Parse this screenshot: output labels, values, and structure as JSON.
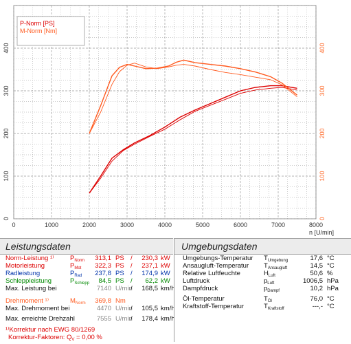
{
  "chart_data": {
    "type": "line",
    "legend_position": "top-left",
    "x_axis": {
      "label": "n [U/min]",
      "range": [
        0,
        8000
      ],
      "ticks": [
        "0",
        "1000",
        "2000",
        "3000",
        "4000",
        "5000",
        "6000",
        "7000",
        "8000"
      ]
    },
    "y_left": {
      "label": "P [PS]",
      "range": [
        0,
        500
      ],
      "ticks": [
        "0",
        "100",
        "200",
        "300",
        "400"
      ]
    },
    "y_right": {
      "label": "M [Nm]",
      "range": [
        0,
        500
      ],
      "ticks": [
        "0",
        "100",
        "200",
        "300",
        "400"
      ]
    },
    "grid": true,
    "series": [
      {
        "name": "P-Norm [PS]",
        "axis": "left",
        "color": "#dd0000",
        "x": [
          2000,
          2300,
          2600,
          2900,
          3200,
          3600,
          4000,
          4400,
          4800,
          5200,
          5600,
          6000,
          6400,
          6800,
          7100,
          7500
        ],
        "y": [
          60,
          100,
          142,
          162,
          178,
          195,
          215,
          238,
          255,
          270,
          285,
          300,
          308,
          312,
          312,
          306
        ]
      },
      {
        "name": "P-Norm [PS] (2)",
        "axis": "left",
        "color": "#dd0000",
        "x": [
          2000,
          2300,
          2600,
          2900,
          3200,
          3600,
          4000,
          4400,
          4800,
          5200,
          5600,
          6000,
          6400,
          6800,
          7100,
          7500
        ],
        "y": [
          60,
          95,
          135,
          160,
          175,
          193,
          210,
          232,
          252,
          266,
          280,
          294,
          302,
          306,
          308,
          302
        ]
      },
      {
        "name": "M-Norm [Nm]",
        "axis": "right",
        "color": "#ff5a1f",
        "x": [
          2000,
          2300,
          2600,
          2800,
          3000,
          3200,
          3500,
          3800,
          4100,
          4300,
          4500,
          4800,
          5200,
          5600,
          6000,
          6400,
          6800,
          7100,
          7500
        ],
        "y": [
          200,
          265,
          335,
          355,
          362,
          358,
          352,
          353,
          358,
          367,
          372,
          366,
          362,
          358,
          352,
          344,
          333,
          318,
          290
        ]
      },
      {
        "name": "M-Norm [Nm] (2)",
        "axis": "right",
        "color": "#ff5a1f",
        "x": [
          2000,
          2300,
          2600,
          2800,
          3000,
          3200,
          3500,
          3800,
          4100,
          4300,
          4500,
          4800,
          5200,
          5600,
          6000,
          6400,
          6800,
          7100,
          7500
        ],
        "y": [
          200,
          250,
          315,
          345,
          360,
          365,
          356,
          352,
          356,
          360,
          362,
          358,
          350,
          343,
          338,
          332,
          326,
          314,
          286
        ]
      }
    ]
  },
  "leistungsdaten": {
    "title": "Leistungsdaten",
    "rows": [
      {
        "label": "Norm-Leistung ¹⁾",
        "sym": "P",
        "sub": "Norm",
        "v1": "313,1",
        "u1": "PS",
        "sep": "/",
        "v2": "230,3",
        "u2": "kW",
        "color": "#dd0000"
      },
      {
        "label": "Motorleistung",
        "sym": "P",
        "sub": "Mot",
        "v1": "322,3",
        "u1": "PS",
        "sep": "/",
        "v2": "237,1",
        "u2": "kW",
        "color": "#dd0000"
      },
      {
        "label": "Radleistung",
        "sym": "P",
        "sub": "Rad",
        "v1": "237,8",
        "u1": "PS",
        "sep": "/",
        "v2": "174,9",
        "u2": "kW",
        "color": "#0033aa"
      },
      {
        "label": "Schleppleistung",
        "sym": "P",
        "sub": "Schlepp",
        "v1": "84,5",
        "u1": "PS",
        "sep": "/",
        "v2": "62,2",
        "u2": "kW",
        "color": "#008800"
      }
    ],
    "max_power_label": "Max. Leistung bei",
    "max_power_rpm": "7140",
    "max_power_rpm_unit": "U/min",
    "max_power_speed": "168,5",
    "max_power_speed_unit": "km/h",
    "torque_label": "Drehmoment ¹⁾",
    "torque_sym": "M",
    "torque_sub": "Norm",
    "torque_value": "369,8",
    "torque_unit": "Nm",
    "max_torque_label": "Max. Drehmoment bei",
    "max_torque_rpm": "4470",
    "max_torque_rpm_unit": "U/min",
    "max_torque_speed": "105,5",
    "max_torque_speed_unit": "km/h",
    "max_rpm_label": "Max. erreichte Drehzahl",
    "max_rpm": "7555",
    "max_rpm_unit": "U/min",
    "max_rpm_speed": "178,4",
    "max_rpm_speed_unit": "km/h",
    "footnote1": "¹⁾Korrektur nach EWG 80/1269",
    "footnote2_prefix": "Korrektur-Faktoren: Q",
    "footnote2_sub": "V",
    "footnote2_suffix": " =   0,00 %"
  },
  "umgebungsdaten": {
    "title": "Umgebungsdaten",
    "rows": [
      {
        "label": "Umgebungs-Temperatur",
        "sym": "T",
        "sub": "Umgebung",
        "value": "17,6",
        "unit": "°C"
      },
      {
        "label": "Ansaugluft-Temperatur",
        "sym": "T",
        "sub": "Ansaugluft",
        "value": "14,5",
        "unit": "°C"
      },
      {
        "label": "Relative Luftfeuchte",
        "sym": "H",
        "sub": "Luft",
        "value": "50,6",
        "unit": "%"
      },
      {
        "label": "Luftdruck",
        "sym": "p",
        "sub": "Luft",
        "value": "1006,5",
        "unit": "hPa"
      },
      {
        "label": "Dampfdruck",
        "sym": "p",
        "sub": "Dampf",
        "value": "10,2",
        "unit": "hPa"
      },
      {
        "label": "Öl-Temperatur",
        "sym": "T",
        "sub": "Öl",
        "value": "76,0",
        "unit": "°C"
      },
      {
        "label": "Kraftstoff-Temperatur",
        "sym": "T",
        "sub": "Kraftstoff",
        "value": "---,-",
        "unit": "°C"
      }
    ]
  }
}
